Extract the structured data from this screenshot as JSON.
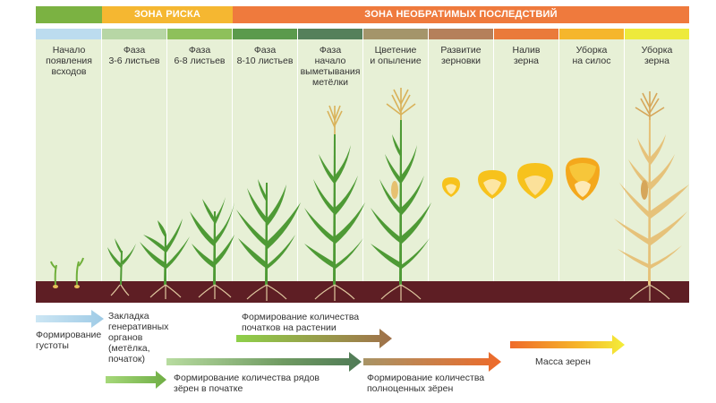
{
  "zones": {
    "risk": "ЗОНА РИСКА",
    "irreversible": "ЗОНА НЕОБРАТИМЫХ ПОСЛЕДСТВИЙ"
  },
  "stages": [
    {
      "label": "Начало\nпоявления\nвсходов"
    },
    {
      "label": "Фаза\n3-6 листьев"
    },
    {
      "label": "Фаза\n6-8 листьев"
    },
    {
      "label": "Фаза\n8-10 листьев"
    },
    {
      "label": "Фаза\nначало\nвыметывания\nметёлки"
    },
    {
      "label": "Цветение\nи опыление"
    },
    {
      "label": "Развитие\nзерновки"
    },
    {
      "label": "Налив\nзерна"
    },
    {
      "label": "Уборка\nна силос"
    },
    {
      "label": "Уборка\nзерна"
    }
  ],
  "processes": {
    "density": "Формирование\nгустоты",
    "generative": "Закладка\nгенеративных\nорганов\n(метёлка,\nпочаток)",
    "ears_count": "Формирование количества\nпочатков на растении",
    "rows_count": "Формирование количества рядов\nзёрен в початке",
    "full_grains": "Формирование количества\nполноценных зёрен",
    "grain_mass": "Масса зерен"
  },
  "colors": {
    "risk_zone": "#f5b731",
    "irreversible_zone": "#ef7a3d",
    "start_zone": "#7bb242",
    "soil": "#5e1e24",
    "column_bg": "#e7f0d6",
    "plant_green": "#4e9a35",
    "plant_dry": "#e6c27a",
    "grain_yellow": "#f7c21c"
  }
}
